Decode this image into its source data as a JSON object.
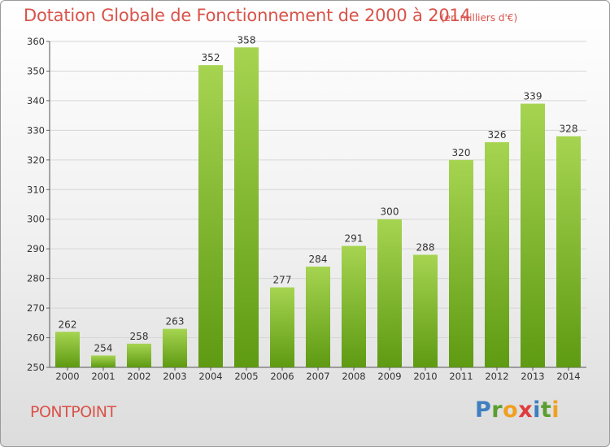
{
  "title": "Dotation Globale de Fonctionnement de 2000 à 2014",
  "unit_note": "(en milliers d'€)",
  "commune": "PONTPOINT",
  "logo": {
    "letters": [
      "P",
      "r",
      "o",
      "x",
      "i",
      "t",
      "i"
    ],
    "colors": [
      "#3f7fc0",
      "#5a9e2f",
      "#f0a020",
      "#e03c3c",
      "#3f7fc0",
      "#5a9e2f",
      "#f0a020"
    ]
  },
  "colors": {
    "bar_top": "#a6d451",
    "bar_bottom": "#5e9a12",
    "text_accent": "#d9534a"
  },
  "chart_data": {
    "type": "bar",
    "title": "Dotation Globale de Fonctionnement de 2000 à 2014",
    "subtitle": "(en milliers d'€)",
    "categories": [
      "2000",
      "2001",
      "2002",
      "2003",
      "2004",
      "2005",
      "2006",
      "2007",
      "2008",
      "2009",
      "2010",
      "2011",
      "2012",
      "2013",
      "2014"
    ],
    "values": [
      262,
      254,
      258,
      263,
      352,
      358,
      277,
      284,
      291,
      300,
      288,
      320,
      326,
      339,
      328
    ],
    "ylim": [
      250,
      360
    ],
    "yticks": [
      250,
      260,
      270,
      280,
      290,
      300,
      310,
      320,
      330,
      340,
      350,
      360
    ],
    "grid": true,
    "data_labels": true,
    "xlabel": "",
    "ylabel": ""
  }
}
